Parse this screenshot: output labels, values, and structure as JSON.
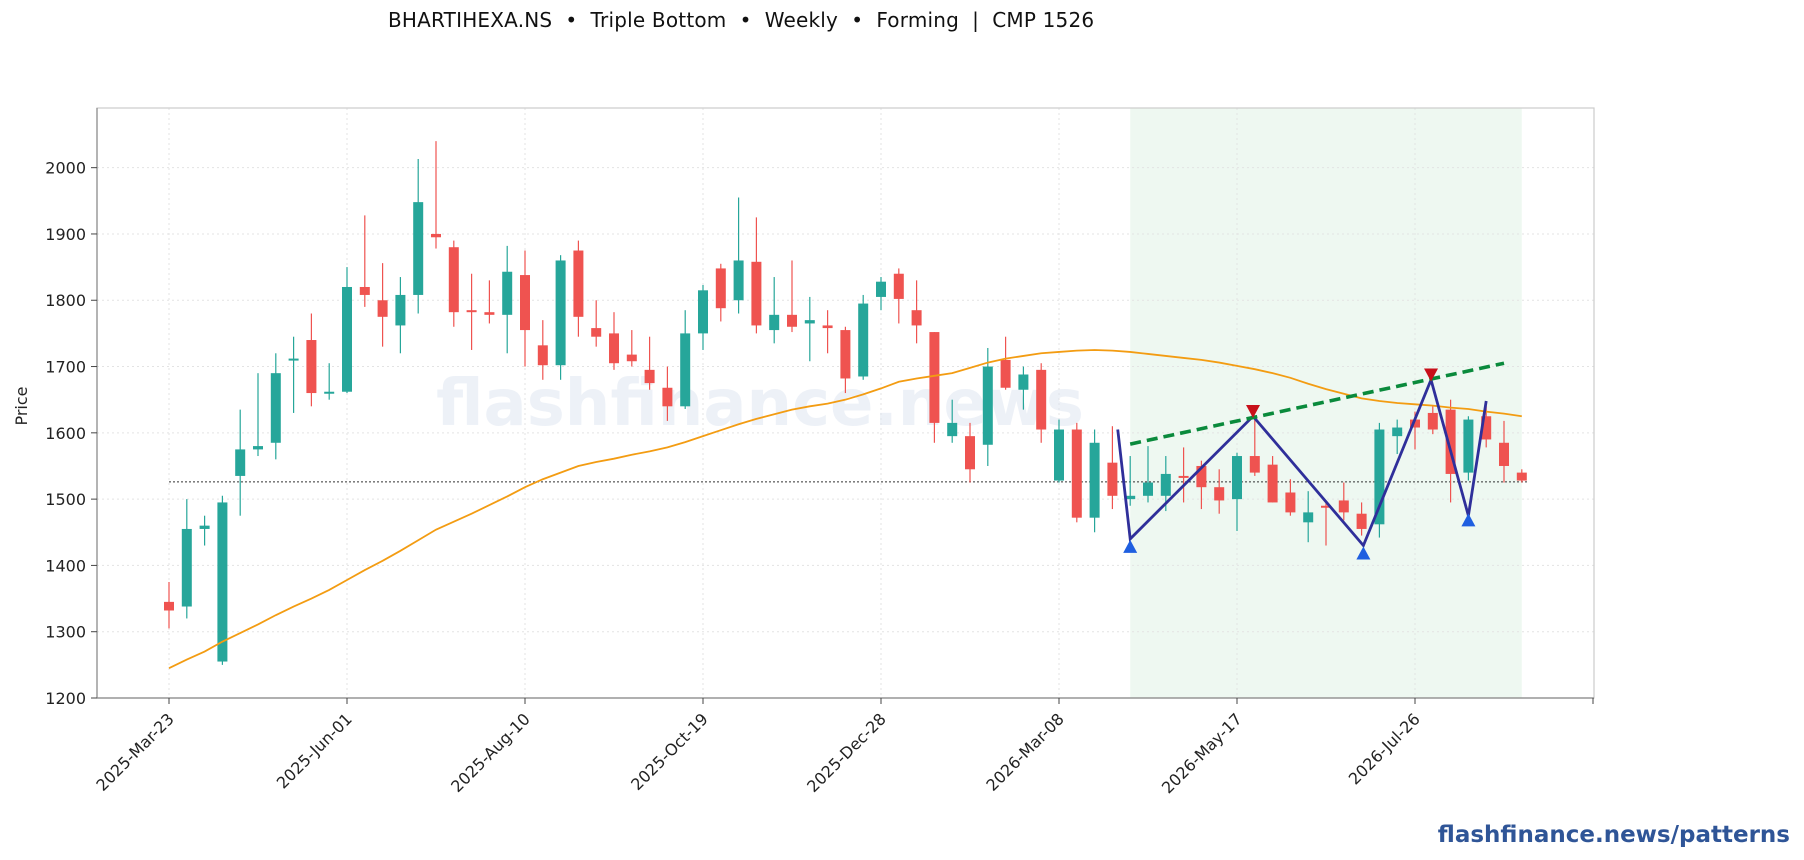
{
  "title": "BHARTIHEXA.NS  •  Triple Bottom  •  Weekly  •  Forming  |  CMP 1526",
  "footer": "flashfinance.news/patterns",
  "watermark": "flashfinance.news",
  "colors": {
    "up": "#26a69a",
    "down": "#ef5350",
    "ma": "#f39c12",
    "pattern": "#2f2f9a",
    "neckline": "#0a8a3c",
    "region": "#e8f5ec",
    "low_marker": "#1f5fe0",
    "high_marker": "#c8101a"
  },
  "chart_data": {
    "type": "candlestick",
    "ylabel": "Price",
    "ylim": [
      1200,
      2090
    ],
    "y_ticks": [
      1200,
      1300,
      1400,
      1500,
      1600,
      1700,
      1800,
      1900,
      2000
    ],
    "x_ticks": [
      {
        "index": 0,
        "label": "2025-Mar-23"
      },
      {
        "index": 10,
        "label": "2025-Jun-01"
      },
      {
        "index": 20,
        "label": "2025-Aug-10"
      },
      {
        "index": 30,
        "label": "2025-Oct-19"
      },
      {
        "index": 40,
        "label": "2025-Dec-28"
      },
      {
        "index": 50,
        "label": "2026-Mar-08"
      },
      {
        "index": 60,
        "label": "2026-May-17"
      },
      {
        "index": 70,
        "label": "2026-Jul-26"
      }
    ],
    "cmp": 1526,
    "candles": [
      [
        1345,
        1375,
        1305,
        1332
      ],
      [
        1338,
        1500,
        1320,
        1455
      ],
      [
        1455,
        1475,
        1430,
        1460
      ],
      [
        1255,
        1505,
        1250,
        1495
      ],
      [
        1535,
        1635,
        1475,
        1575
      ],
      [
        1575,
        1690,
        1565,
        1580
      ],
      [
        1585,
        1720,
        1560,
        1690
      ],
      [
        1710,
        1745,
        1630,
        1712
      ],
      [
        1740,
        1780,
        1640,
        1660
      ],
      [
        1660,
        1705,
        1650,
        1662
      ],
      [
        1662,
        1850,
        1660,
        1820
      ],
      [
        1820,
        1928,
        1790,
        1808
      ],
      [
        1800,
        1856,
        1730,
        1775
      ],
      [
        1762,
        1835,
        1720,
        1808
      ],
      [
        1808,
        2013,
        1780,
        1948
      ],
      [
        1900,
        2040,
        1878,
        1895
      ],
      [
        1880,
        1890,
        1760,
        1782
      ],
      [
        1785,
        1840,
        1725,
        1783
      ],
      [
        1782,
        1830,
        1765,
        1778
      ],
      [
        1778,
        1882,
        1720,
        1843
      ],
      [
        1838,
        1875,
        1700,
        1755
      ],
      [
        1732,
        1770,
        1680,
        1702
      ],
      [
        1702,
        1868,
        1680,
        1860
      ],
      [
        1875,
        1890,
        1745,
        1775
      ],
      [
        1758,
        1800,
        1730,
        1745
      ],
      [
        1750,
        1782,
        1695,
        1705
      ],
      [
        1718,
        1755,
        1700,
        1708
      ],
      [
        1695,
        1745,
        1665,
        1675
      ],
      [
        1668,
        1700,
        1618,
        1640
      ],
      [
        1640,
        1785,
        1636,
        1750
      ],
      [
        1750,
        1823,
        1725,
        1815
      ],
      [
        1848,
        1855,
        1768,
        1788
      ],
      [
        1800,
        1955,
        1780,
        1860
      ],
      [
        1858,
        1925,
        1750,
        1762
      ],
      [
        1755,
        1835,
        1735,
        1778
      ],
      [
        1778,
        1860,
        1752,
        1760
      ],
      [
        1765,
        1805,
        1708,
        1770
      ],
      [
        1762,
        1785,
        1720,
        1758
      ],
      [
        1755,
        1760,
        1660,
        1682
      ],
      [
        1685,
        1808,
        1680,
        1795
      ],
      [
        1805,
        1835,
        1785,
        1828
      ],
      [
        1840,
        1848,
        1765,
        1802
      ],
      [
        1785,
        1830,
        1735,
        1762
      ],
      [
        1752,
        1752,
        1585,
        1615
      ],
      [
        1595,
        1650,
        1585,
        1615
      ],
      [
        1595,
        1615,
        1525,
        1545
      ],
      [
        1582,
        1728,
        1550,
        1700
      ],
      [
        1710,
        1745,
        1665,
        1668
      ],
      [
        1665,
        1700,
        1635,
        1688
      ],
      [
        1695,
        1705,
        1585,
        1605
      ],
      [
        1528,
        1620,
        1525,
        1605
      ],
      [
        1605,
        1615,
        1465,
        1472
      ],
      [
        1472,
        1605,
        1450,
        1585
      ],
      [
        1555,
        1610,
        1485,
        1505
      ],
      [
        1500,
        1565,
        1490,
        1505
      ],
      [
        1505,
        1580,
        1495,
        1525
      ],
      [
        1505,
        1565,
        1482,
        1538
      ],
      [
        1535,
        1578,
        1495,
        1532
      ],
      [
        1550,
        1558,
        1485,
        1518
      ],
      [
        1518,
        1545,
        1478,
        1498
      ],
      [
        1500,
        1570,
        1452,
        1565
      ],
      [
        1565,
        1625,
        1535,
        1540
      ],
      [
        1552,
        1565,
        1495,
        1495
      ],
      [
        1510,
        1530,
        1475,
        1480
      ],
      [
        1465,
        1512,
        1435,
        1480
      ],
      [
        1490,
        1495,
        1430,
        1488
      ],
      [
        1498,
        1525,
        1468,
        1480
      ],
      [
        1478,
        1495,
        1445,
        1455
      ],
      [
        1462,
        1615,
        1442,
        1605
      ],
      [
        1595,
        1620,
        1568,
        1608
      ],
      [
        1620,
        1632,
        1575,
        1608
      ],
      [
        1630,
        1640,
        1598,
        1605
      ],
      [
        1635,
        1650,
        1495,
        1538
      ],
      [
        1540,
        1625,
        1528,
        1620
      ],
      [
        1625,
        1640,
        1578,
        1590
      ],
      [
        1585,
        1618,
        1525,
        1550
      ],
      [
        1540,
        1545,
        1525,
        1528
      ]
    ],
    "moving_average": [
      1245,
      1258,
      1270,
      1285,
      1298,
      1311,
      1325,
      1338,
      1350,
      1363,
      1378,
      1393,
      1407,
      1422,
      1438,
      1454,
      1466,
      1478,
      1491,
      1504,
      1518,
      1530,
      1540,
      1550,
      1556,
      1561,
      1567,
      1572,
      1578,
      1586,
      1595,
      1604,
      1613,
      1621,
      1628,
      1635,
      1640,
      1644,
      1650,
      1658,
      1667,
      1677,
      1682,
      1686,
      1690,
      1698,
      1706,
      1712,
      1716,
      1720,
      1722,
      1724,
      1725,
      1724,
      1722,
      1719,
      1716,
      1713,
      1710,
      1706,
      1701,
      1696,
      1690,
      1683,
      1674,
      1666,
      1659,
      1652,
      1648,
      1645,
      1643,
      1641,
      1638,
      1636,
      1632,
      1629,
      1625
    ],
    "pattern": {
      "zigzag": [
        [
          53.3,
          1605
        ],
        [
          54,
          1440
        ],
        [
          60.9,
          1625
        ],
        [
          67.1,
          1430
        ],
        [
          70.9,
          1680
        ],
        [
          73,
          1475
        ],
        [
          74,
          1648
        ]
      ],
      "neckline": [
        [
          54,
          1583
        ],
        [
          75,
          1705
        ]
      ],
      "lows": [
        [
          54,
          1428
        ],
        [
          67.1,
          1418
        ],
        [
          73,
          1468
        ]
      ],
      "highs": [
        [
          60.9,
          1633
        ],
        [
          70.9,
          1688
        ]
      ],
      "region": [
        54,
        76
      ]
    }
  }
}
